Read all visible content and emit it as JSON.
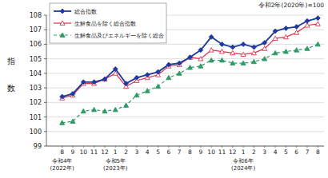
{
  "chart_data": {
    "type": "line",
    "note": "令和2年(2020年)=100",
    "y_label": "指数",
    "categories": [
      "8",
      "9",
      "10",
      "11",
      "12",
      "1",
      "2",
      "3",
      "4",
      "5",
      "6",
      "7",
      "8",
      "9",
      "10",
      "11",
      "12",
      "1",
      "2",
      "3",
      "4",
      "5",
      "6",
      "7",
      "8"
    ],
    "year_labels": [
      {
        "category_index": 0,
        "lines": [
          "令和4年",
          "(2022年)"
        ]
      },
      {
        "category_index": 5,
        "lines": [
          "令和5年",
          "(2023年)"
        ]
      },
      {
        "category_index": 17,
        "lines": [
          "令和6年",
          "(2024年)"
        ]
      }
    ],
    "series": [
      {
        "name": "総合指数",
        "color": "#1f3a9e",
        "marker": "diamond",
        "line_style": "solid",
        "values": [
          102.4,
          102.6,
          103.4,
          103.4,
          103.6,
          104.3,
          103.3,
          103.7,
          103.9,
          104.1,
          104.6,
          104.7,
          105.1,
          105.6,
          106.5,
          106.0,
          105.8,
          106.0,
          105.8,
          106.1,
          106.9,
          107.1,
          107.2,
          107.6,
          107.8
        ]
      },
      {
        "name": "生鮮食品を除く総合指数",
        "color": "#e0304a",
        "marker": "triangle-open",
        "line_style": "solid",
        "values": [
          102.3,
          102.5,
          103.3,
          103.3,
          103.6,
          104.0,
          103.1,
          103.5,
          103.7,
          103.9,
          104.5,
          104.6,
          105.1,
          105.0,
          105.6,
          105.5,
          105.4,
          105.3,
          105.4,
          105.7,
          106.4,
          106.5,
          106.8,
          107.3,
          107.4
        ]
      },
      {
        "name": "生鮮食品及びエネルギーを除く総合",
        "color": "#2f9a66",
        "marker": "triangle",
        "line_style": "dashed",
        "values": [
          100.6,
          100.7,
          101.4,
          101.5,
          101.4,
          101.5,
          101.8,
          102.5,
          102.8,
          103.1,
          103.7,
          104.0,
          104.4,
          104.5,
          104.9,
          104.9,
          104.7,
          104.7,
          104.8,
          105.0,
          105.4,
          105.5,
          105.6,
          105.7,
          106.0
        ]
      }
    ],
    "ylim": [
      99,
      108
    ],
    "yticks": [
      99,
      100,
      101,
      102,
      103,
      104,
      105,
      106,
      107,
      108
    ],
    "grid": true,
    "legend": "top-left"
  }
}
